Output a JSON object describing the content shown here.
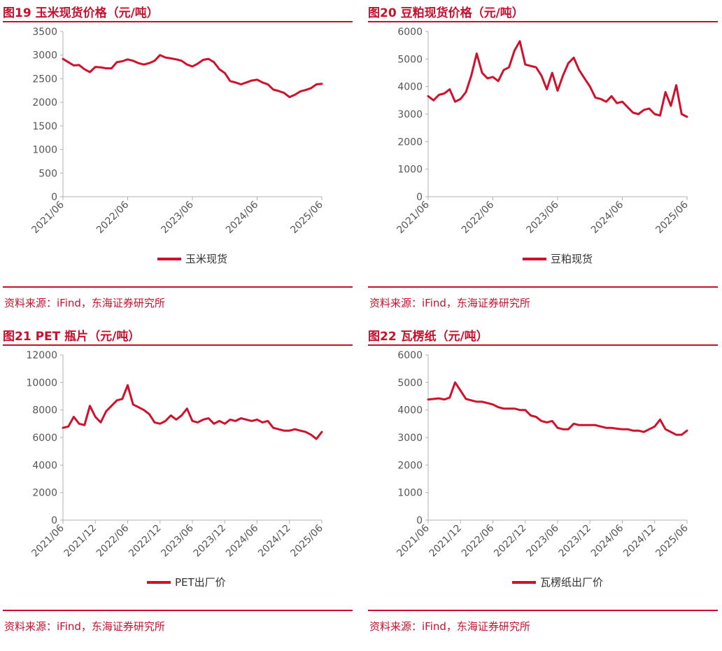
{
  "source_text": "资料来源：iFind，东海证券研究所",
  "colors": {
    "accent": "#c8102e",
    "series": "#d0112b",
    "axis": "#b0b0b0"
  },
  "chart_data": [
    {
      "type": "line",
      "title": "图19  玉米现货价格（元/吨）",
      "ylim": [
        0,
        3500
      ],
      "yticks": [
        0,
        500,
        1000,
        1500,
        2000,
        2500,
        3000,
        3500
      ],
      "xlim": [
        "2021-06",
        "2025-06"
      ],
      "xticks": [
        "2021/06",
        "2022/06",
        "2023/06",
        "2024/06",
        "2025/06"
      ],
      "grid": false,
      "legend": "bottom",
      "series": [
        {
          "name": "玉米现货",
          "x": [
            "2021-06",
            "2021-07",
            "2021-08",
            "2021-09",
            "2021-10",
            "2021-11",
            "2021-12",
            "2022-01",
            "2022-02",
            "2022-03",
            "2022-04",
            "2022-05",
            "2022-06",
            "2022-07",
            "2022-08",
            "2022-09",
            "2022-10",
            "2022-11",
            "2022-12",
            "2023-01",
            "2023-02",
            "2023-03",
            "2023-04",
            "2023-05",
            "2023-06",
            "2023-07",
            "2023-08",
            "2023-09",
            "2023-10",
            "2023-11",
            "2023-12",
            "2024-01",
            "2024-02",
            "2024-03",
            "2024-04",
            "2024-05",
            "2024-06",
            "2024-07",
            "2024-08",
            "2024-09",
            "2024-10",
            "2024-11",
            "2024-12",
            "2025-01",
            "2025-02",
            "2025-03",
            "2025-04",
            "2025-05",
            "2025-06"
          ],
          "values": [
            2920,
            2850,
            2780,
            2790,
            2700,
            2640,
            2750,
            2740,
            2720,
            2720,
            2850,
            2870,
            2910,
            2880,
            2830,
            2800,
            2830,
            2880,
            3000,
            2950,
            2930,
            2910,
            2880,
            2800,
            2760,
            2820,
            2900,
            2920,
            2850,
            2700,
            2620,
            2450,
            2420,
            2380,
            2420,
            2460,
            2480,
            2420,
            2380,
            2270,
            2240,
            2200,
            2110,
            2160,
            2230,
            2260,
            2300,
            2380,
            2390
          ]
        }
      ]
    },
    {
      "type": "line",
      "title": "图20  豆粕现货价格（元/吨）",
      "ylim": [
        0,
        6000
      ],
      "yticks": [
        0,
        1000,
        2000,
        3000,
        4000,
        5000,
        6000
      ],
      "xlim": [
        "2021-06",
        "2025-06"
      ],
      "xticks": [
        "2021/06",
        "2022/06",
        "2023/06",
        "2024/06",
        "2025/06"
      ],
      "grid": false,
      "legend": "bottom",
      "series": [
        {
          "name": "豆粕现货",
          "x": [
            "2021-06",
            "2021-07",
            "2021-08",
            "2021-09",
            "2021-10",
            "2021-11",
            "2021-12",
            "2022-01",
            "2022-02",
            "2022-03",
            "2022-04",
            "2022-05",
            "2022-06",
            "2022-07",
            "2022-08",
            "2022-09",
            "2022-10",
            "2022-11",
            "2022-12",
            "2023-01",
            "2023-02",
            "2023-03",
            "2023-04",
            "2023-05",
            "2023-06",
            "2023-07",
            "2023-08",
            "2023-09",
            "2023-10",
            "2023-11",
            "2023-12",
            "2024-01",
            "2024-02",
            "2024-03",
            "2024-04",
            "2024-05",
            "2024-06",
            "2024-07",
            "2024-08",
            "2024-09",
            "2024-10",
            "2024-11",
            "2024-12",
            "2025-01",
            "2025-02",
            "2025-03",
            "2025-04",
            "2025-05",
            "2025-06"
          ],
          "values": [
            3650,
            3500,
            3700,
            3750,
            3900,
            3450,
            3550,
            3800,
            4400,
            5200,
            4500,
            4300,
            4350,
            4200,
            4600,
            4700,
            5300,
            5650,
            4800,
            4750,
            4700,
            4400,
            3900,
            4500,
            3850,
            4400,
            4850,
            5050,
            4600,
            4300,
            4000,
            3600,
            3550,
            3450,
            3650,
            3400,
            3450,
            3250,
            3050,
            3000,
            3150,
            3200,
            3000,
            2950,
            3800,
            3300,
            4050,
            3000,
            2900
          ]
        }
      ]
    },
    {
      "type": "line",
      "title": "图21  PET 瓶片（元/吨）",
      "ylim": [
        0,
        12000
      ],
      "yticks": [
        0,
        2000,
        4000,
        6000,
        8000,
        10000,
        12000
      ],
      "xlim": [
        "2021-06",
        "2025-06"
      ],
      "xticks": [
        "2021/06",
        "2021/12",
        "2022/06",
        "2022/12",
        "2023/06",
        "2023/12",
        "2024/06",
        "2024/12",
        "2025/06"
      ],
      "grid": false,
      "legend": "bottom",
      "series": [
        {
          "name": "PET出厂价",
          "x": [
            "2021-06",
            "2021-07",
            "2021-08",
            "2021-09",
            "2021-10",
            "2021-11",
            "2021-12",
            "2022-01",
            "2022-02",
            "2022-03",
            "2022-04",
            "2022-05",
            "2022-06",
            "2022-07",
            "2022-08",
            "2022-09",
            "2022-10",
            "2022-11",
            "2022-12",
            "2023-01",
            "2023-02",
            "2023-03",
            "2023-04",
            "2023-05",
            "2023-06",
            "2023-07",
            "2023-08",
            "2023-09",
            "2023-10",
            "2023-11",
            "2023-12",
            "2024-01",
            "2024-02",
            "2024-03",
            "2024-04",
            "2024-05",
            "2024-06",
            "2024-07",
            "2024-08",
            "2024-09",
            "2024-10",
            "2024-11",
            "2024-12",
            "2025-01",
            "2025-02",
            "2025-03",
            "2025-04",
            "2025-05",
            "2025-06"
          ],
          "values": [
            6700,
            6800,
            7500,
            7000,
            6900,
            8300,
            7500,
            7100,
            7900,
            8300,
            8700,
            8800,
            9800,
            8400,
            8200,
            8000,
            7700,
            7100,
            7000,
            7200,
            7600,
            7300,
            7600,
            8100,
            7200,
            7100,
            7300,
            7400,
            7000,
            7200,
            7000,
            7300,
            7200,
            7400,
            7300,
            7200,
            7300,
            7100,
            7200,
            6700,
            6600,
            6500,
            6500,
            6600,
            6500,
            6400,
            6200,
            5900,
            6400
          ]
        }
      ]
    },
    {
      "type": "line",
      "title": "图22  瓦楞纸（元/吨）",
      "ylim": [
        0,
        6000
      ],
      "yticks": [
        0,
        1000,
        2000,
        3000,
        4000,
        5000,
        6000
      ],
      "xlim": [
        "2021-06",
        "2025-06"
      ],
      "xticks": [
        "2021/06",
        "2021/12",
        "2022/06",
        "2022/12",
        "2023/06",
        "2023/12",
        "2024/06",
        "2024/12",
        "2025/06"
      ],
      "grid": false,
      "legend": "bottom",
      "series": [
        {
          "name": "瓦楞纸出厂价",
          "x": [
            "2021-06",
            "2021-07",
            "2021-08",
            "2021-09",
            "2021-10",
            "2021-11",
            "2021-12",
            "2022-01",
            "2022-02",
            "2022-03",
            "2022-04",
            "2022-05",
            "2022-06",
            "2022-07",
            "2022-08",
            "2022-09",
            "2022-10",
            "2022-11",
            "2022-12",
            "2023-01",
            "2023-02",
            "2023-03",
            "2023-04",
            "2023-05",
            "2023-06",
            "2023-07",
            "2023-08",
            "2023-09",
            "2023-10",
            "2023-11",
            "2023-12",
            "2024-01",
            "2024-02",
            "2024-03",
            "2024-04",
            "2024-05",
            "2024-06",
            "2024-07",
            "2024-08",
            "2024-09",
            "2024-10",
            "2024-11",
            "2024-12",
            "2025-01",
            "2025-02",
            "2025-03",
            "2025-04",
            "2025-05",
            "2025-06"
          ],
          "values": [
            4380,
            4400,
            4420,
            4380,
            4450,
            5000,
            4700,
            4400,
            4350,
            4300,
            4300,
            4250,
            4200,
            4100,
            4050,
            4050,
            4050,
            4000,
            4000,
            3800,
            3750,
            3600,
            3550,
            3600,
            3350,
            3300,
            3300,
            3500,
            3450,
            3450,
            3450,
            3450,
            3400,
            3350,
            3350,
            3320,
            3300,
            3300,
            3250,
            3250,
            3200,
            3300,
            3400,
            3650,
            3300,
            3200,
            3100,
            3100,
            3250
          ]
        }
      ]
    }
  ]
}
